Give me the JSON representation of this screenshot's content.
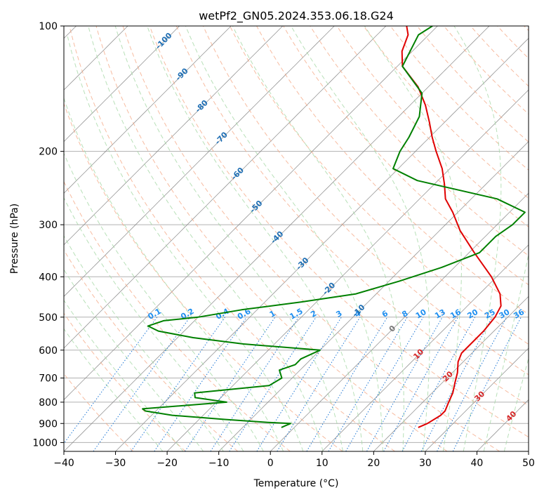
{
  "chart_data": {
    "type": "line",
    "subtype": "skew-t log-p diagram",
    "title": "wetPf2_GN05.2024.353.06.18.G24",
    "xlabel": "Temperature (°C)",
    "ylabel": "Pressure (hPa)",
    "xlim": [
      -40,
      50
    ],
    "ylim": [
      1050,
      100
    ],
    "y_scale": "log",
    "x_ticks": [
      -40,
      -30,
      -20,
      -10,
      0,
      10,
      20,
      30,
      40,
      50
    ],
    "x_tick_labels": [
      "−40",
      "−30",
      "−20",
      "−10",
      "0",
      "10",
      "20",
      "30",
      "40",
      "50"
    ],
    "y_ticks": [
      100,
      200,
      300,
      400,
      500,
      600,
      700,
      800,
      900,
      1000
    ],
    "y_tick_labels": [
      "100",
      "200",
      "300",
      "400",
      "500",
      "600",
      "700",
      "800",
      "900",
      "1000"
    ],
    "grid": true,
    "colors": {
      "temperature": "#e00000",
      "dewpoint": "#008000",
      "isotherm": "#999999",
      "dry_adiabat": "#f4a582",
      "moist_adiabat": "#a6d8a6",
      "mixing_ratio": "#1f77d4",
      "temperature_label": "#1f6fb4",
      "mixing_label": "#1f8ff0",
      "dry_label": "#d62728",
      "grid": "#b0b0b0",
      "skew_isotherm": "#888888"
    },
    "series": [
      {
        "key": "temperature",
        "pressure": [
          920,
          900,
          860,
          840,
          800,
          760,
          720,
          680,
          640,
          610,
          580,
          540,
          500,
          470,
          440,
          400,
          350,
          310,
          280,
          260,
          240,
          220,
          200,
          185,
          170,
          155,
          140,
          125,
          115,
          105,
          100
        ],
        "values": [
          24.0,
          25.0,
          26.0,
          26.0,
          25.0,
          24.0,
          22.5,
          21.0,
          19.0,
          18.0,
          18.0,
          18.0,
          17.5,
          16.5,
          14.0,
          9.0,
          1.0,
          -6.0,
          -11.0,
          -15.0,
          -18.0,
          -21.5,
          -26.0,
          -29.5,
          -33.0,
          -37.0,
          -42.0,
          -49.0,
          -52.0,
          -54.0,
          -56.0
        ]
      },
      {
        "key": "dewpoint",
        "pressure": [
          920,
          910,
          900,
          895,
          880,
          860,
          840,
          830,
          800,
          780,
          760,
          730,
          700,
          670,
          650,
          630,
          600,
          580,
          560,
          540,
          525,
          510,
          500,
          480,
          460,
          440,
          410,
          380,
          350,
          320,
          300,
          280,
          260,
          235,
          220,
          200,
          185,
          165,
          145,
          125,
          105,
          100
        ],
        "values": [
          -2.5,
          -2.0,
          -1.5,
          -6.0,
          -15.0,
          -26.0,
          -32.0,
          -33.0,
          -18.0,
          -25.0,
          -26.0,
          -13.0,
          -12.0,
          -14.0,
          -12.0,
          -12.0,
          -10.0,
          -26.0,
          -37.0,
          -45.0,
          -48.0,
          -46.0,
          -40.0,
          -33.0,
          -23.0,
          -14.0,
          -8.0,
          -2.5,
          2.0,
          2.0,
          3.0,
          3.0,
          -5.0,
          -24.0,
          -31.0,
          -33.0,
          -34.0,
          -36.0,
          -40.0,
          -49.0,
          -52.0,
          -51.0
        ]
      }
    ],
    "isotherm_labels": [
      "-100",
      "-90",
      "-80",
      "-70",
      "-60",
      "-50",
      "-40",
      "-30",
      "-20",
      "-10"
    ],
    "mixing_ratio_labels": [
      "0.1",
      "0.2",
      "0.4",
      "0.6",
      "1",
      "1.5",
      "2",
      "3",
      "4",
      "6",
      "8",
      "10",
      "13",
      "16",
      "20",
      "25",
      "30",
      "36"
    ],
    "mixing_ratio_values": [
      0.1,
      0.2,
      0.4,
      0.6,
      1,
      1.5,
      2,
      3,
      4,
      6,
      8,
      10,
      13,
      16,
      20,
      25,
      30,
      36
    ],
    "dry_adiabat_labels": [
      "0",
      "10",
      "20",
      "30",
      "40"
    ],
    "dry_adiabat_label_pressures": [
      530,
      610,
      690,
      770,
      860
    ],
    "dry_adiabat_label_values": [
      0,
      10,
      20,
      30,
      40
    ]
  }
}
